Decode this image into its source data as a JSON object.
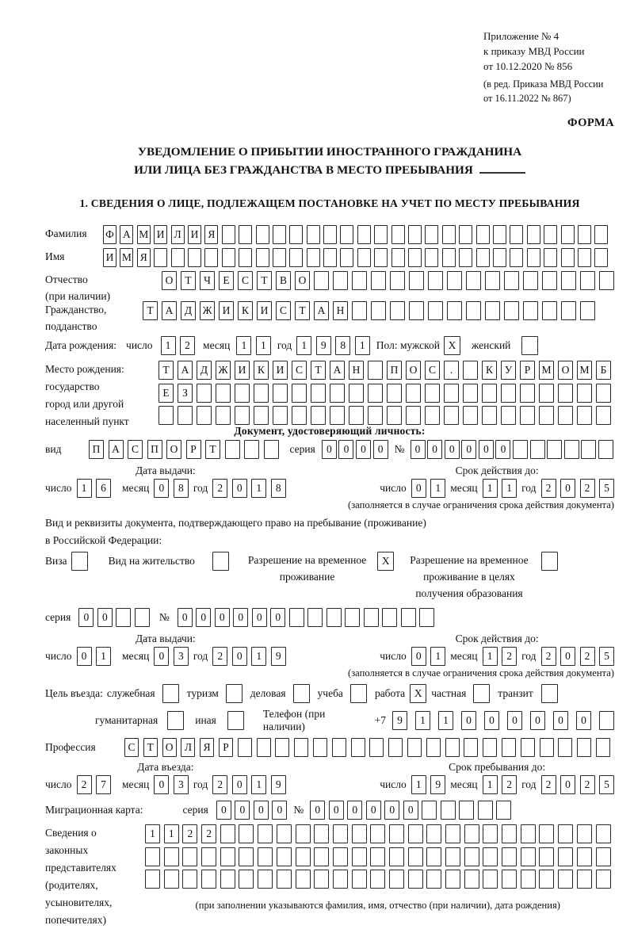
{
  "header": {
    "lines": [
      "Приложение № 4",
      "к приказу МВД России",
      "от 10.12.2020 № 856"
    ],
    "sub_lines": [
      "(в ред. Приказа МВД России",
      "от 16.11.2022 № 867)"
    ],
    "forma": "ФОРМА"
  },
  "title": {
    "line1": "УВЕДОМЛЕНИЕ О ПРИБЫТИИ ИНОСТРАННОГО ГРАЖДАНИНА",
    "line2": "ИЛИ ЛИЦА БЕЗ ГРАЖДАНСТВА В МЕСТО ПРЕБЫВАНИЯ"
  },
  "section1": "1. СВЕДЕНИЯ О ЛИЦЕ, ПОДЛЕЖАЩЕМ ПОСТАНОВКЕ НА УЧЕТ ПО МЕСТУ ПРЕБЫВАНИЯ",
  "labels": {
    "surname": "Фамилия",
    "name": "Имя",
    "patronymic1": "Отчество",
    "patronymic2": "(при наличии)",
    "citizenship1": "Гражданство,",
    "citizenship2": "подданство",
    "birth_date": "Дата рождения:",
    "day": "число",
    "month": "месяц",
    "year": "год",
    "sex": "Пол: мужской",
    "female": "женский",
    "birth_place": "Место рождения:",
    "bp2": "государство",
    "bp3": "город или другой",
    "bp4": "населенный пункт",
    "id_doc_heading": "Документ, удостоверяющий личность:",
    "doc_type": "вид",
    "series": "серия",
    "number": "№",
    "issue_date": "Дата выдачи:",
    "valid_until": "Срок действия до:",
    "validity_note": "(заполняется в случае ограничения срока действия документа)",
    "residence_doc1": "Вид и реквизиты документа, подтверждающего право на пребывание (проживание)",
    "residence_doc2": "в Российской Федерации:",
    "visa": "Виза",
    "residence_permit": "Вид на жительство",
    "temp_permit1": "Разрешение на временное",
    "temp_permit2": "проживание",
    "temp_edu1": "Разрешение на временное",
    "temp_edu2": "проживание в целях",
    "temp_edu3": "получения образования",
    "purpose": "Цель въезда:",
    "p_official": "служебная",
    "p_tourism": "туризм",
    "p_business": "деловая",
    "p_study": "учеба",
    "p_work": "работа",
    "p_private": "частная",
    "p_transit": "транзит",
    "p_humanitarian": "гуманитарная",
    "p_other": "иная",
    "phone": "Телефон (при наличии)",
    "phone_prefix": "+7",
    "profession": "Профессия",
    "entry_date_h": "Дата въезда:",
    "stay_until_h": "Срок пребывания до:",
    "migration_card": "Миграционная карта:",
    "rep_lines": [
      "Сведения о",
      "законных",
      "представителях",
      "(родителях,",
      "усыновителях,",
      "попечителях)"
    ],
    "representatives_note": "(при заполнении указываются фамилия, имя, отчество (при наличии), дата рождения)"
  },
  "cells": {
    "surname": {
      "chars": "ФАМИЛИЯ",
      "count": 30
    },
    "given_name": {
      "chars": "ИМЯ",
      "count": 30
    },
    "patronymic": {
      "chars": "ОТЧЕСТВО",
      "count": 24
    },
    "citizenship": {
      "chars": "ТАДЖИКИСТАН",
      "count": 24
    },
    "birth_day": {
      "chars": "12",
      "count": 2
    },
    "birth_month": {
      "chars": "11",
      "count": 2
    },
    "birth_year": {
      "chars": "1981",
      "count": 4
    },
    "sex_male": {
      "chars": "X",
      "count": 1
    },
    "sex_female": {
      "chars": "",
      "count": 1
    },
    "birth_place_1": {
      "chars": "ТАДЖИКИСТАН ПОС. КУРМОМБ",
      "count": 24
    },
    "birth_place_2": {
      "chars": "ЕЗ",
      "count": 24
    },
    "birth_place_3": {
      "chars": "",
      "count": 24
    },
    "doc_type": {
      "chars": "ПАСПОРТ",
      "count": 10
    },
    "doc_series": {
      "chars": "0000",
      "count": 4
    },
    "doc_number": {
      "chars": "000000",
      "count": 12
    },
    "doc_issue_day": {
      "chars": "16",
      "count": 2
    },
    "doc_issue_month": {
      "chars": "08",
      "count": 2
    },
    "doc_issue_year": {
      "chars": "2018",
      "count": 4
    },
    "doc_valid_day": {
      "chars": "01",
      "count": 2
    },
    "doc_valid_month": {
      "chars": "11",
      "count": 2
    },
    "doc_valid_year": {
      "chars": "2025",
      "count": 4
    },
    "visa_cb": {
      "chars": "",
      "count": 1
    },
    "residence_permit_cb": {
      "chars": "",
      "count": 1
    },
    "temp_permit_cb": {
      "chars": "X",
      "count": 1
    },
    "temp_edu_cb": {
      "chars": "",
      "count": 1
    },
    "permit_series": {
      "chars": "00",
      "count": 4
    },
    "permit_number": {
      "chars": "000000",
      "count": 14
    },
    "permit_issue_day": {
      "chars": "01",
      "count": 2
    },
    "permit_issue_month": {
      "chars": "03",
      "count": 2
    },
    "permit_issue_year": {
      "chars": "2019",
      "count": 4
    },
    "permit_valid_day": {
      "chars": "01",
      "count": 2
    },
    "permit_valid_month": {
      "chars": "12",
      "count": 2
    },
    "permit_valid_year": {
      "chars": "2025",
      "count": 4
    },
    "p_official_cb": {
      "chars": "",
      "count": 1
    },
    "p_tourism_cb": {
      "chars": "",
      "count": 1
    },
    "p_business_cb": {
      "chars": "",
      "count": 1
    },
    "p_study_cb": {
      "chars": "",
      "count": 1
    },
    "p_work_cb": {
      "chars": "X",
      "count": 1
    },
    "p_private_cb": {
      "chars": "",
      "count": 1
    },
    "p_transit_cb": {
      "chars": "",
      "count": 1
    },
    "p_humanitarian_cb": {
      "chars": "",
      "count": 1
    },
    "p_other_cb": {
      "chars": "",
      "count": 1
    },
    "phone": {
      "chars": "911000000",
      "count": 10
    },
    "profession": {
      "chars": "СТОЛЯР",
      "count": 26
    },
    "entry_day": {
      "chars": "27",
      "count": 2
    },
    "entry_month": {
      "chars": "03",
      "count": 2
    },
    "entry_year": {
      "chars": "2019",
      "count": 4
    },
    "stay_day": {
      "chars": "19",
      "count": 2
    },
    "stay_month": {
      "chars": "12",
      "count": 2
    },
    "stay_year": {
      "chars": "2025",
      "count": 4
    },
    "mc_series": {
      "chars": "0000",
      "count": 4
    },
    "mc_number": {
      "chars": "000000",
      "count": 11
    },
    "rep_row_1": {
      "chars": "1122",
      "count": 25
    },
    "rep_row_2": {
      "chars": "",
      "count": 25
    },
    "rep_row_3": {
      "chars": "",
      "count": 25
    }
  }
}
